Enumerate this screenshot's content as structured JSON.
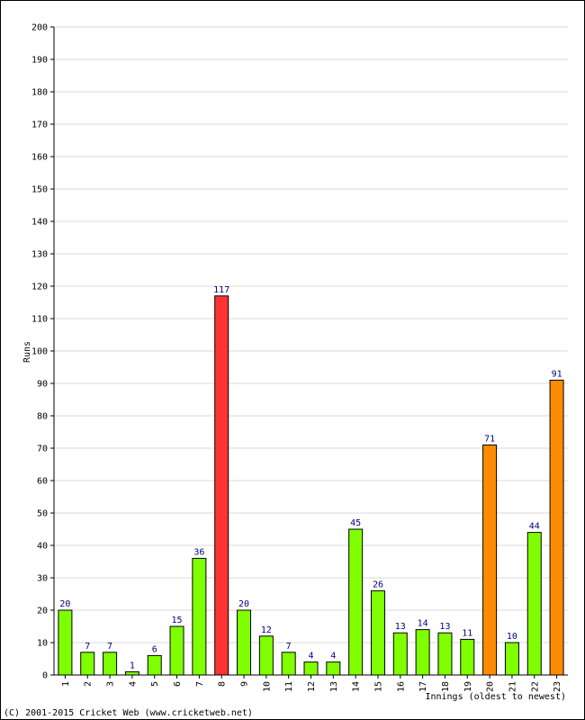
{
  "colors": {
    "normal": "#80ff00",
    "fifty": "#ff8c00",
    "hundred": "#ff3333",
    "data_label": "#000080",
    "grid": "#d9d9d9"
  },
  "chart_data": {
    "type": "bar",
    "title": "",
    "xlabel": "Innings (oldest to newest)",
    "ylabel": "Runs",
    "ylim": [
      0,
      200
    ],
    "ytick_step": 10,
    "grid": true,
    "categories": [
      "1",
      "2",
      "3",
      "4",
      "5",
      "6",
      "7",
      "8",
      "9",
      "10",
      "11",
      "12",
      "13",
      "14",
      "15",
      "16",
      "17",
      "18",
      "19",
      "20",
      "21",
      "22",
      "23"
    ],
    "values": [
      20,
      7,
      7,
      1,
      6,
      15,
      36,
      117,
      20,
      12,
      7,
      4,
      4,
      45,
      26,
      13,
      14,
      13,
      11,
      71,
      10,
      44,
      91
    ],
    "bar_colors": [
      "normal",
      "normal",
      "normal",
      "normal",
      "normal",
      "normal",
      "normal",
      "hundred",
      "normal",
      "normal",
      "normal",
      "normal",
      "normal",
      "normal",
      "normal",
      "normal",
      "normal",
      "normal",
      "normal",
      "fifty",
      "normal",
      "normal",
      "fifty"
    ]
  },
  "footer": "(C) 2001-2015 Cricket Web (www.cricketweb.net)"
}
